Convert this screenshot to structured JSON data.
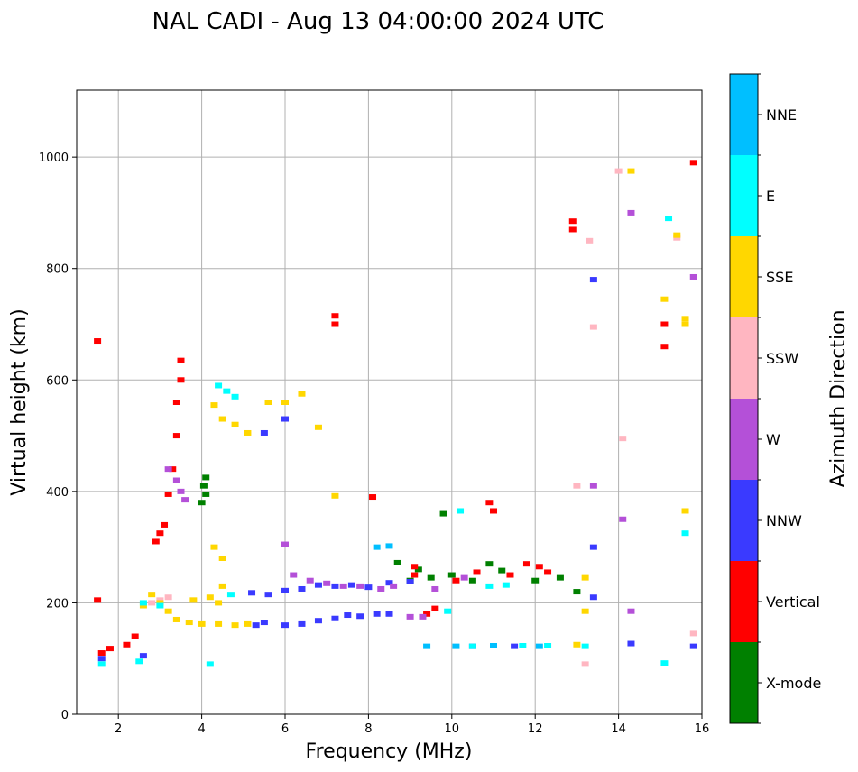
{
  "chart_data": {
    "type": "scatter",
    "title": "NAL CADI - Aug 13 04:00:00 2024 UTC",
    "xlabel": "Frequency (MHz)",
    "ylabel": "Virtual height (km)",
    "xlim": [
      1,
      16
    ],
    "ylim": [
      0,
      1120
    ],
    "xticks": [
      2,
      4,
      6,
      8,
      10,
      12,
      14,
      16
    ],
    "yticks": [
      0,
      200,
      400,
      600,
      800,
      1000
    ],
    "grid": true,
    "colorbar": {
      "label": "Azimuth Direction",
      "categories": [
        {
          "name": "X-mode",
          "color": "#008000"
        },
        {
          "name": "Vertical",
          "color": "#ff0000"
        },
        {
          "name": "NNW",
          "color": "#3a3aff"
        },
        {
          "name": "W",
          "color": "#b450d8"
        },
        {
          "name": "SSW",
          "color": "#ffb6c1"
        },
        {
          "name": "SSE",
          "color": "#ffd700"
        },
        {
          "name": "E",
          "color": "#00ffff"
        },
        {
          "name": "NNE",
          "color": "#00bfff"
        }
      ]
    },
    "series": [
      {
        "name": "X-mode",
        "points": [
          [
            4.0,
            380
          ],
          [
            4.1,
            395
          ],
          [
            4.05,
            410
          ],
          [
            4.1,
            425
          ],
          [
            9.2,
            260
          ],
          [
            9.5,
            245
          ],
          [
            10.0,
            250
          ],
          [
            10.5,
            240
          ],
          [
            10.9,
            270
          ],
          [
            11.2,
            258
          ],
          [
            12.0,
            240
          ],
          [
            12.6,
            245
          ],
          [
            13.0,
            220
          ],
          [
            9.8,
            360
          ],
          [
            8.7,
            272
          ],
          [
            9.0,
            240
          ]
        ]
      },
      {
        "name": "Vertical",
        "points": [
          [
            1.5,
            670
          ],
          [
            1.5,
            205
          ],
          [
            1.6,
            110
          ],
          [
            1.8,
            118
          ],
          [
            2.2,
            125
          ],
          [
            2.4,
            140
          ],
          [
            2.9,
            310
          ],
          [
            3.0,
            325
          ],
          [
            3.1,
            340
          ],
          [
            3.2,
            395
          ],
          [
            3.3,
            440
          ],
          [
            3.4,
            500
          ],
          [
            3.4,
            560
          ],
          [
            3.5,
            600
          ],
          [
            3.5,
            635
          ],
          [
            7.2,
            700
          ],
          [
            7.2,
            715
          ],
          [
            8.1,
            390
          ],
          [
            9.1,
            250
          ],
          [
            9.4,
            180
          ],
          [
            9.6,
            190
          ],
          [
            10.1,
            240
          ],
          [
            10.9,
            380
          ],
          [
            11.0,
            365
          ],
          [
            11.4,
            250
          ],
          [
            11.8,
            270
          ],
          [
            12.1,
            265
          ],
          [
            12.3,
            255
          ],
          [
            12.9,
            870
          ],
          [
            12.9,
            885
          ],
          [
            15.1,
            700
          ],
          [
            15.1,
            660
          ],
          [
            15.8,
            990
          ],
          [
            9.1,
            265
          ],
          [
            10.6,
            255
          ]
        ]
      },
      {
        "name": "NNW",
        "points": [
          [
            1.6,
            100
          ],
          [
            2.6,
            105
          ],
          [
            5.3,
            160
          ],
          [
            5.5,
            165
          ],
          [
            6.0,
            160
          ],
          [
            6.4,
            162
          ],
          [
            6.8,
            168
          ],
          [
            7.2,
            172
          ],
          [
            7.5,
            178
          ],
          [
            7.8,
            176
          ],
          [
            8.2,
            180
          ],
          [
            8.5,
            180
          ],
          [
            5.2,
            218
          ],
          [
            5.6,
            215
          ],
          [
            6.0,
            222
          ],
          [
            6.4,
            225
          ],
          [
            6.8,
            232
          ],
          [
            7.2,
            230
          ],
          [
            7.6,
            232
          ],
          [
            8.0,
            228
          ],
          [
            8.5,
            236
          ],
          [
            9.0,
            238
          ],
          [
            5.5,
            505
          ],
          [
            6.0,
            530
          ],
          [
            10.5,
            122
          ],
          [
            11.5,
            122
          ],
          [
            13.4,
            300
          ],
          [
            13.4,
            210
          ],
          [
            13.4,
            780
          ],
          [
            14.3,
            127
          ],
          [
            15.8,
            122
          ]
        ]
      },
      {
        "name": "W",
        "points": [
          [
            3.2,
            440
          ],
          [
            3.4,
            420
          ],
          [
            3.5,
            400
          ],
          [
            3.6,
            385
          ],
          [
            6.0,
            305
          ],
          [
            6.2,
            250
          ],
          [
            6.6,
            240
          ],
          [
            7.0,
            235
          ],
          [
            7.4,
            230
          ],
          [
            7.8,
            230
          ],
          [
            8.3,
            225
          ],
          [
            8.6,
            230
          ],
          [
            9.0,
            175
          ],
          [
            9.3,
            175
          ],
          [
            9.6,
            225
          ],
          [
            10.3,
            245
          ],
          [
            13.4,
            410
          ],
          [
            14.3,
            185
          ],
          [
            14.3,
            900
          ],
          [
            15.8,
            785
          ],
          [
            14.1,
            350
          ]
        ]
      },
      {
        "name": "SSW",
        "points": [
          [
            2.8,
            200
          ],
          [
            3.0,
            205
          ],
          [
            3.2,
            210
          ],
          [
            13.0,
            410
          ],
          [
            13.4,
            695
          ],
          [
            13.3,
            850
          ],
          [
            13.2,
            90
          ],
          [
            14.1,
            495
          ],
          [
            15.4,
            855
          ],
          [
            15.8,
            145
          ],
          [
            14.0,
            975
          ]
        ]
      },
      {
        "name": "SSE",
        "points": [
          [
            2.6,
            195
          ],
          [
            2.8,
            215
          ],
          [
            3.0,
            200
          ],
          [
            3.2,
            185
          ],
          [
            3.4,
            170
          ],
          [
            3.7,
            165
          ],
          [
            4.0,
            162
          ],
          [
            4.4,
            162
          ],
          [
            4.8,
            160
          ],
          [
            5.1,
            162
          ],
          [
            3.8,
            205
          ],
          [
            4.2,
            210
          ],
          [
            4.4,
            200
          ],
          [
            4.5,
            230
          ],
          [
            4.5,
            280
          ],
          [
            4.3,
            300
          ],
          [
            4.3,
            555
          ],
          [
            4.5,
            530
          ],
          [
            4.8,
            520
          ],
          [
            5.1,
            505
          ],
          [
            5.6,
            560
          ],
          [
            6.0,
            560
          ],
          [
            6.4,
            575
          ],
          [
            6.8,
            515
          ],
          [
            7.2,
            392
          ],
          [
            13.2,
            245
          ],
          [
            13.2,
            185
          ],
          [
            15.1,
            745
          ],
          [
            15.6,
            710
          ],
          [
            15.6,
            700
          ],
          [
            15.4,
            860
          ],
          [
            15.6,
            365
          ],
          [
            14.3,
            975
          ],
          [
            13.0,
            125
          ]
        ]
      },
      {
        "name": "E",
        "points": [
          [
            1.6,
            90
          ],
          [
            2.5,
            95
          ],
          [
            2.6,
            200
          ],
          [
            3.0,
            195
          ],
          [
            4.4,
            590
          ],
          [
            4.6,
            580
          ],
          [
            4.8,
            570
          ],
          [
            4.7,
            215
          ],
          [
            4.2,
            90
          ],
          [
            9.9,
            185
          ],
          [
            10.2,
            365
          ],
          [
            10.5,
            122
          ],
          [
            10.9,
            230
          ],
          [
            11.3,
            232
          ],
          [
            11.7,
            123
          ],
          [
            12.3,
            123
          ],
          [
            13.2,
            122
          ],
          [
            15.2,
            890
          ],
          [
            15.6,
            325
          ],
          [
            15.1,
            92
          ]
        ]
      },
      {
        "name": "NNE",
        "points": [
          [
            9.4,
            122
          ],
          [
            10.1,
            122
          ],
          [
            11.0,
            123
          ],
          [
            12.1,
            122
          ],
          [
            8.2,
            300
          ],
          [
            8.5,
            302
          ]
        ]
      }
    ]
  }
}
